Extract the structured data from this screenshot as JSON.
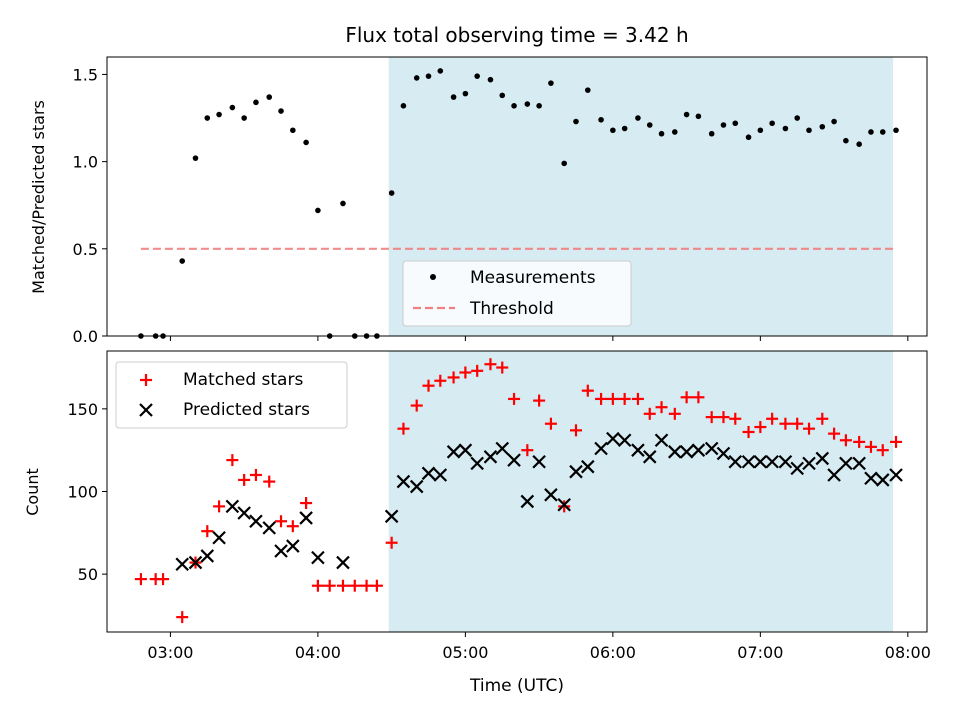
{
  "figure": {
    "title": "Flux total observing time = 3.42 h",
    "xlabel": "Time (UTC)",
    "x_ticks": [
      {
        "t": 3.0,
        "label": "03:00"
      },
      {
        "t": 4.0,
        "label": "04:00"
      },
      {
        "t": 5.0,
        "label": "05:00"
      },
      {
        "t": 6.0,
        "label": "06:00"
      },
      {
        "t": 7.0,
        "label": "07:00"
      },
      {
        "t": 8.0,
        "label": "08:00"
      }
    ]
  },
  "chart_data": [
    {
      "type": "scatter",
      "panel": "top",
      "ylabel": "Matched/Predicted stars",
      "xlim": [
        2.57,
        8.13
      ],
      "ylim": [
        0,
        1.6
      ],
      "y_ticks": [
        0.0,
        0.5,
        1.0,
        1.5
      ],
      "y_tick_labels": [
        "0.0",
        "0.5",
        "1.0",
        "1.5"
      ],
      "shaded_span": {
        "from": 4.48,
        "to": 7.9,
        "color": "#add8e6"
      },
      "legend": {
        "position": "lower-center",
        "entries": [
          "Measurements",
          "Threshold"
        ]
      },
      "series": [
        {
          "name": "Measurements",
          "marker": "dot",
          "color": "#000000",
          "x": [
            2.8,
            2.9,
            2.95,
            3.08,
            3.17,
            3.25,
            3.33,
            3.42,
            3.5,
            3.58,
            3.67,
            3.75,
            3.83,
            3.92,
            4.0,
            4.08,
            4.17,
            4.25,
            4.33,
            4.4,
            4.5,
            4.58,
            4.67,
            4.75,
            4.83,
            4.92,
            5.0,
            5.08,
            5.17,
            5.25,
            5.33,
            5.42,
            5.5,
            5.58,
            5.67,
            5.75,
            5.83,
            5.92,
            6.0,
            6.08,
            6.17,
            6.25,
            6.33,
            6.42,
            6.5,
            6.58,
            6.67,
            6.75,
            6.83,
            6.92,
            7.0,
            7.08,
            7.17,
            7.25,
            7.33,
            7.42,
            7.5,
            7.58,
            7.67,
            7.75,
            7.83,
            7.92
          ],
          "values": [
            0,
            0,
            0,
            0.43,
            1.02,
            1.25,
            1.27,
            1.31,
            1.25,
            1.34,
            1.37,
            1.29,
            1.18,
            1.11,
            0.72,
            0.0,
            0.76,
            0.0,
            0.0,
            0.0,
            0.82,
            1.32,
            1.48,
            1.49,
            1.52,
            1.37,
            1.39,
            1.49,
            1.47,
            1.38,
            1.32,
            1.33,
            1.32,
            1.45,
            0.99,
            1.23,
            1.41,
            1.24,
            1.18,
            1.19,
            1.25,
            1.21,
            1.16,
            1.17,
            1.27,
            1.26,
            1.16,
            1.21,
            1.22,
            1.14,
            1.18,
            1.22,
            1.19,
            1.25,
            1.18,
            1.2,
            1.23,
            1.12,
            1.1,
            1.17,
            1.17,
            1.18
          ]
        },
        {
          "name": "Threshold",
          "style": "dashed",
          "color": "#f08080",
          "x": [
            2.8,
            7.92
          ],
          "values": [
            0.5,
            0.5
          ]
        }
      ]
    },
    {
      "type": "scatter",
      "panel": "bottom",
      "ylabel": "Count",
      "xlim": [
        2.57,
        8.13
      ],
      "ylim": [
        15,
        185
      ],
      "y_ticks": [
        50,
        100,
        150
      ],
      "y_tick_labels": [
        "50",
        "100",
        "150"
      ],
      "shaded_span": {
        "from": 4.48,
        "to": 7.9,
        "color": "#add8e6"
      },
      "legend": {
        "position": "top-left",
        "entries": [
          "Matched stars",
          "Predicted stars"
        ]
      },
      "series": [
        {
          "name": "Matched stars",
          "marker": "plus",
          "color": "#ff0000",
          "x": [
            2.8,
            2.9,
            2.95,
            3.08,
            3.17,
            3.25,
            3.33,
            3.42,
            3.5,
            3.58,
            3.67,
            3.75,
            3.83,
            3.92,
            4.0,
            4.08,
            4.17,
            4.25,
            4.33,
            4.4,
            4.5,
            4.58,
            4.67,
            4.75,
            4.83,
            4.92,
            5.0,
            5.08,
            5.17,
            5.25,
            5.33,
            5.42,
            5.5,
            5.58,
            5.67,
            5.75,
            5.83,
            5.92,
            6.0,
            6.08,
            6.17,
            6.25,
            6.33,
            6.42,
            6.5,
            6.58,
            6.67,
            6.75,
            6.83,
            6.92,
            7.0,
            7.08,
            7.17,
            7.25,
            7.33,
            7.42,
            7.5,
            7.58,
            7.67,
            7.75,
            7.83,
            7.92
          ],
          "values": [
            47,
            47,
            47,
            24,
            57,
            76,
            91,
            119,
            107,
            110,
            106,
            82,
            79,
            93,
            43,
            43,
            43,
            43,
            43,
            43,
            69,
            138,
            152,
            164,
            167,
            169,
            172,
            173,
            177,
            175,
            156,
            125,
            155,
            141,
            91,
            137,
            161,
            156,
            156,
            156,
            156,
            147,
            151,
            147,
            157,
            157,
            145,
            145,
            144,
            136,
            139,
            144,
            141,
            141,
            138,
            144,
            135,
            131,
            130,
            127,
            125,
            130
          ]
        },
        {
          "name": "Predicted stars",
          "marker": "x",
          "color": "#000000",
          "x": [
            3.08,
            3.17,
            3.25,
            3.33,
            3.42,
            3.5,
            3.58,
            3.67,
            3.75,
            3.83,
            3.92,
            4.0,
            4.17,
            4.5,
            4.58,
            4.67,
            4.75,
            4.83,
            4.92,
            5.0,
            5.08,
            5.17,
            5.25,
            5.33,
            5.42,
            5.5,
            5.58,
            5.67,
            5.75,
            5.83,
            5.92,
            6.0,
            6.08,
            6.17,
            6.25,
            6.33,
            6.42,
            6.5,
            6.58,
            6.67,
            6.75,
            6.83,
            6.92,
            7.0,
            7.08,
            7.17,
            7.25,
            7.33,
            7.42,
            7.5,
            7.58,
            7.67,
            7.75,
            7.83,
            7.92
          ],
          "values": [
            56,
            57,
            61,
            72,
            91,
            87,
            82,
            78,
            64,
            67,
            84,
            60,
            57,
            85,
            106,
            103,
            111,
            110,
            124,
            125,
            117,
            121,
            126,
            119,
            94,
            118,
            98,
            92,
            112,
            115,
            126,
            132,
            131,
            125,
            121,
            131,
            124,
            124,
            125,
            126,
            123,
            118,
            118,
            118,
            118,
            118,
            114,
            117,
            120,
            110,
            117,
            117,
            108,
            107,
            110
          ]
        }
      ]
    }
  ]
}
